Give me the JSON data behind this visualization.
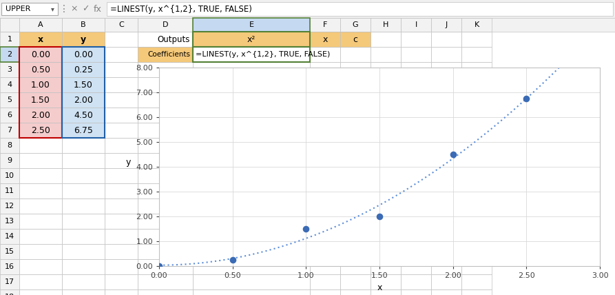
{
  "formula_bar_text": "=LINEST(y, x^{1,2}, TRUE, FALSE)",
  "data_x": [
    0.0,
    0.5,
    1.0,
    1.5,
    2.0,
    2.5
  ],
  "data_y": [
    0.0,
    0.25,
    1.5,
    2.0,
    4.5,
    6.75
  ],
  "orange_bg": "#F5C97A",
  "pink_bg": "#F4CCCC",
  "blue_bg": "#CFE2F3",
  "green_border": "#538135",
  "red_border": "#C00000",
  "blue_border_col": "#1F5FA6",
  "scatter_dot_color": "#3B6BB5",
  "curve_color": "#5B8DD9",
  "grid_color": "#D9D9D9",
  "xlim": [
    0.0,
    3.0
  ],
  "ylim": [
    0.0,
    8.0
  ],
  "xticks": [
    0.0,
    0.5,
    1.0,
    1.5,
    2.0,
    2.5,
    3.0
  ],
  "yticks": [
    0.0,
    1.0,
    2.0,
    3.0,
    4.0,
    5.0,
    6.0,
    7.0,
    8.0
  ],
  "xlabel": "x",
  "ylabel": "y",
  "sheet_bg": "#FFFFFF",
  "header_bg": "#F2F2F2",
  "toolbar_bg": "#F0F0F0",
  "cell_line_color": "#D0D0D0"
}
